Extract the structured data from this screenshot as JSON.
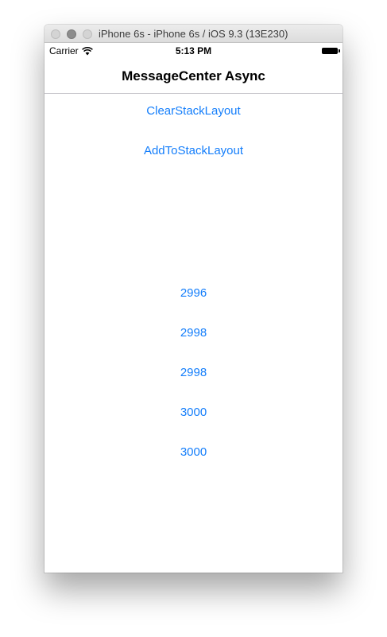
{
  "window": {
    "title": "iPhone 6s - iPhone 6s / iOS 9.3 (13E230)"
  },
  "status_bar": {
    "carrier": "Carrier",
    "time": "5:13 PM"
  },
  "nav_bar": {
    "title": "MessageCenter Async"
  },
  "buttons": {
    "clear": "ClearStackLayout",
    "add": "AddToStackLayout"
  },
  "stack_items": [
    "2996",
    "2998",
    "2998",
    "3000",
    "3000"
  ],
  "colors": {
    "accent": "#147efb",
    "separator": "#c8c7cc"
  }
}
